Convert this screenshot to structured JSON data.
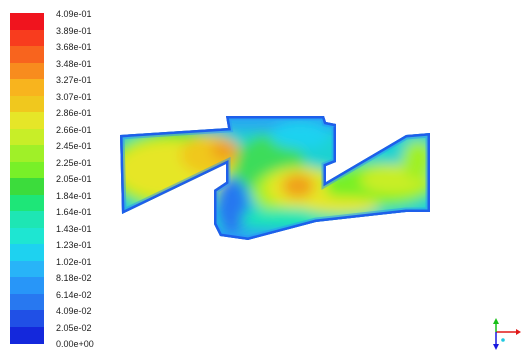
{
  "legend": {
    "ticks": [
      "4.09e-01",
      "3.89e-01",
      "3.68e-01",
      "3.48e-01",
      "3.27e-01",
      "3.07e-01",
      "2.86e-01",
      "2.66e-01",
      "2.45e-01",
      "2.25e-01",
      "2.05e-01",
      "1.84e-01",
      "1.64e-01",
      "1.43e-01",
      "1.23e-01",
      "1.02e-01",
      "8.18e-02",
      "6.14e-02",
      "4.09e-02",
      "2.05e-02",
      "0.00e+00"
    ],
    "colors": [
      "#f0141e",
      "#f83c1e",
      "#f8641e",
      "#f88c1e",
      "#f8b41e",
      "#f0c81e",
      "#e6e628",
      "#c8ee28",
      "#a0f028",
      "#78f028",
      "#3cdc3c",
      "#1ee678",
      "#1ee6b4",
      "#1ee6d2",
      "#1ed2f0",
      "#28b4f8",
      "#2896f8",
      "#2878f0",
      "#2050e6",
      "#1428dc"
    ]
  },
  "colors": {
    "low": "#1428dc",
    "mid": "#3cdc5a",
    "high": "#e6e628",
    "peak": "#f0a01e"
  }
}
